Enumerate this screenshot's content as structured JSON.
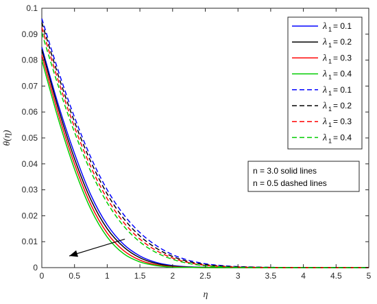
{
  "chart_data": {
    "type": "line",
    "xlabel": "η",
    "ylabel": "θ(η)",
    "xlim": [
      0,
      5
    ],
    "ylim": [
      0,
      0.1
    ],
    "xticks": [
      "0",
      "0.5",
      "1",
      "1.5",
      "2",
      "2.5",
      "3",
      "3.5",
      "4",
      "4.5",
      "5"
    ],
    "yticks": [
      "0",
      "0.01",
      "0.02",
      "0.03",
      "0.04",
      "0.05",
      "0.06",
      "0.07",
      "0.08",
      "0.09",
      "0.1"
    ],
    "grid": false,
    "legend_position": "top-right",
    "x": [
      0,
      0.25,
      0.5,
      0.75,
      1.0,
      1.25,
      1.5,
      1.75,
      2.0,
      2.25,
      2.5,
      2.75,
      3.0,
      3.5,
      4.0,
      4.5,
      5.0
    ],
    "series": [
      {
        "legend_symbol": "λ",
        "legend_sub": "1",
        "legend_value": "= 0.1",
        "color": "#0000ff",
        "style": "solid",
        "values": [
          0.085,
          0.063,
          0.044,
          0.028,
          0.0165,
          0.009,
          0.0045,
          0.002,
          0.0008,
          0.0003,
          0.0001,
          0,
          0,
          0,
          0,
          0,
          0
        ]
      },
      {
        "legend_symbol": "λ",
        "legend_sub": "1",
        "legend_value": "= 0.2",
        "color": "#000000",
        "style": "solid",
        "values": [
          0.084,
          0.0615,
          0.042,
          0.0262,
          0.015,
          0.008,
          0.0038,
          0.0016,
          0.0006,
          0.0002,
          0.0001,
          0,
          0,
          0,
          0,
          0,
          0
        ]
      },
      {
        "legend_symbol": "λ",
        "legend_sub": "1",
        "legend_value": "= 0.3",
        "color": "#ff0000",
        "style": "solid",
        "values": [
          0.082,
          0.0595,
          0.04,
          0.0243,
          0.0133,
          0.0066,
          0.0029,
          0.0011,
          0.0004,
          0.0001,
          0,
          0,
          0,
          0,
          0,
          0,
          0
        ]
      },
      {
        "legend_symbol": "λ",
        "legend_sub": "1",
        "legend_value": "= 0.4",
        "color": "#00cc00",
        "style": "solid",
        "values": [
          0.08,
          0.0575,
          0.038,
          0.0225,
          0.0118,
          0.0054,
          0.0022,
          0.0008,
          0.0002,
          0.0001,
          0,
          0,
          0,
          0,
          0,
          0,
          0
        ]
      },
      {
        "legend_symbol": "λ",
        "legend_sub": "1",
        "legend_value": "= 0.1",
        "color": "#0000ff",
        "style": "dashed",
        "values": [
          0.096,
          0.076,
          0.058,
          0.0425,
          0.03,
          0.0205,
          0.0135,
          0.0085,
          0.005,
          0.0028,
          0.0015,
          0.0008,
          0.0004,
          0.0001,
          0,
          0,
          0
        ]
      },
      {
        "legend_symbol": "λ",
        "legend_sub": "1",
        "legend_value": "= 0.2",
        "color": "#000000",
        "style": "dashed",
        "values": [
          0.0945,
          0.0742,
          0.0562,
          0.0408,
          0.0284,
          0.019,
          0.0122,
          0.0075,
          0.0043,
          0.0023,
          0.0012,
          0.0006,
          0.0003,
          0.0001,
          0,
          0,
          0
        ]
      },
      {
        "legend_symbol": "λ",
        "legend_sub": "1",
        "legend_value": "= 0.3",
        "color": "#ff0000",
        "style": "dashed",
        "values": [
          0.0925,
          0.0722,
          0.0542,
          0.0388,
          0.0266,
          0.0175,
          0.011,
          0.0066,
          0.0037,
          0.0019,
          0.0009,
          0.0004,
          0.0002,
          0,
          0,
          0,
          0
        ]
      },
      {
        "legend_symbol": "λ",
        "legend_sub": "1",
        "legend_value": "= 0.4",
        "color": "#00cc00",
        "style": "dashed",
        "values": [
          0.0905,
          0.0702,
          0.0522,
          0.037,
          0.025,
          0.0161,
          0.0099,
          0.0058,
          0.0032,
          0.0016,
          0.0007,
          0.0003,
          0.0001,
          0,
          0,
          0,
          0
        ]
      }
    ],
    "annotation_lines": [
      "n = 3.0 solid lines",
      "n = 0.5 dashed lines"
    ],
    "arrow": {
      "from": [
        1.27,
        0.011
      ],
      "to": [
        0.42,
        0.0045
      ]
    }
  }
}
